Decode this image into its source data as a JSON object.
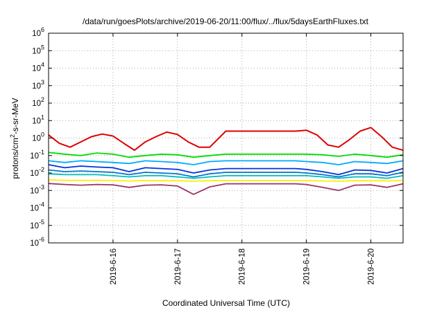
{
  "chart_data": {
    "type": "line",
    "title": "/data/run/goesPlots/archive/2019-06-20/11:00/flux/../flux/5daysEarthFluxes.txt",
    "xlabel": "Coordinated Universal Time (UTC)",
    "ylabel": {
      "prefix": "protons/cm",
      "sup": "2",
      "suffix": "-s-sr-MeV"
    },
    "yscale": "log",
    "ylim": [
      1e-06,
      1000000.0
    ],
    "xlim": [
      "2019-06-15 00:00",
      "2019-06-20 12:00"
    ],
    "y_ticks": [
      {
        "base": "10",
        "exp": "-6"
      },
      {
        "base": "10",
        "exp": "-5"
      },
      {
        "base": "10",
        "exp": "-4"
      },
      {
        "base": "10",
        "exp": "-3"
      },
      {
        "base": "10",
        "exp": "-2"
      },
      {
        "base": "10",
        "exp": "-1"
      },
      {
        "base": "10",
        "exp": "0"
      },
      {
        "base": "10",
        "exp": "1"
      },
      {
        "base": "10",
        "exp": "2"
      },
      {
        "base": "10",
        "exp": "3"
      },
      {
        "base": "10",
        "exp": "4"
      },
      {
        "base": "10",
        "exp": "5"
      },
      {
        "base": "10",
        "exp": "6"
      }
    ],
    "x_ticks": [
      "2019-6-16",
      "2019-6-17",
      "2019-6-18",
      "2019-6-19",
      "2019-6-20"
    ],
    "grid": "dotted",
    "legend": "none",
    "series": [
      {
        "color": "#dd0000",
        "x": [
          "2019-06-15 00:00",
          "2019-06-15 04:00",
          "2019-06-15 08:00",
          "2019-06-15 12:00",
          "2019-06-15 16:00",
          "2019-06-15 20:00",
          "2019-06-16 00:00",
          "2019-06-16 04:00",
          "2019-06-16 08:00",
          "2019-06-16 12:00",
          "2019-06-16 16:00",
          "2019-06-16 20:00",
          "2019-06-17 00:00",
          "2019-06-17 04:00",
          "2019-06-17 08:00",
          "2019-06-17 12:00",
          "2019-06-17 18:00",
          "2019-06-18 00:00",
          "2019-06-18 12:00",
          "2019-06-18 20:00",
          "2019-06-19 00:00",
          "2019-06-19 04:00",
          "2019-06-19 08:00",
          "2019-06-19 12:00",
          "2019-06-19 16:00",
          "2019-06-19 20:00",
          "2019-06-20 00:00",
          "2019-06-20 04:00",
          "2019-06-20 08:00",
          "2019-06-20 12:00"
        ],
        "values": [
          1.5,
          0.5,
          0.3,
          0.6,
          1.2,
          1.7,
          1.3,
          0.5,
          0.2,
          0.6,
          1.2,
          2.2,
          1.6,
          0.6,
          0.3,
          0.3,
          2.5,
          2.5,
          2.5,
          2.5,
          2.8,
          1.5,
          0.4,
          0.3,
          0.8,
          2.5,
          4.0,
          1.2,
          0.3,
          0.2
        ]
      },
      {
        "color": "#00dd00",
        "x": [
          "2019-06-15 00:00",
          "2019-06-15 06:00",
          "2019-06-15 12:00",
          "2019-06-15 18:00",
          "2019-06-16 00:00",
          "2019-06-16 06:00",
          "2019-06-16 12:00",
          "2019-06-16 18:00",
          "2019-06-17 00:00",
          "2019-06-17 06:00",
          "2019-06-17 12:00",
          "2019-06-17 18:00",
          "2019-06-18 00:00",
          "2019-06-18 12:00",
          "2019-06-18 20:00",
          "2019-06-19 00:00",
          "2019-06-19 06:00",
          "2019-06-19 12:00",
          "2019-06-19 18:00",
          "2019-06-20 00:00",
          "2019-06-20 06:00",
          "2019-06-20 12:00"
        ],
        "values": [
          0.15,
          0.12,
          0.1,
          0.14,
          0.12,
          0.08,
          0.1,
          0.12,
          0.11,
          0.08,
          0.1,
          0.12,
          0.12,
          0.12,
          0.12,
          0.12,
          0.11,
          0.09,
          0.12,
          0.1,
          0.08,
          0.11
        ]
      },
      {
        "color": "#00aaff",
        "x": [
          "2019-06-15 00:00",
          "2019-06-15 06:00",
          "2019-06-15 12:00",
          "2019-06-15 18:00",
          "2019-06-16 00:00",
          "2019-06-16 06:00",
          "2019-06-16 12:00",
          "2019-06-16 18:00",
          "2019-06-17 00:00",
          "2019-06-17 06:00",
          "2019-06-17 12:00",
          "2019-06-17 18:00",
          "2019-06-18 00:00",
          "2019-06-18 12:00",
          "2019-06-18 20:00",
          "2019-06-19 00:00",
          "2019-06-19 06:00",
          "2019-06-19 12:00",
          "2019-06-19 18:00",
          "2019-06-20 00:00",
          "2019-06-20 06:00",
          "2019-06-20 12:00"
        ],
        "values": [
          0.05,
          0.04,
          0.05,
          0.045,
          0.04,
          0.035,
          0.05,
          0.045,
          0.04,
          0.03,
          0.045,
          0.05,
          0.05,
          0.05,
          0.05,
          0.045,
          0.04,
          0.03,
          0.045,
          0.04,
          0.035,
          0.05
        ]
      },
      {
        "color": "#0033dd",
        "x": [
          "2019-06-15 00:00",
          "2019-06-15 06:00",
          "2019-06-15 12:00",
          "2019-06-15 18:00",
          "2019-06-16 00:00",
          "2019-06-16 06:00",
          "2019-06-16 12:00",
          "2019-06-16 18:00",
          "2019-06-17 00:00",
          "2019-06-17 06:00",
          "2019-06-17 12:00",
          "2019-06-17 18:00",
          "2019-06-18 00:00",
          "2019-06-18 12:00",
          "2019-06-18 20:00",
          "2019-06-19 00:00",
          "2019-06-19 06:00",
          "2019-06-19 12:00",
          "2019-06-19 18:00",
          "2019-06-20 00:00",
          "2019-06-20 06:00",
          "2019-06-20 12:00"
        ],
        "values": [
          0.03,
          0.02,
          0.025,
          0.022,
          0.02,
          0.012,
          0.02,
          0.018,
          0.016,
          0.01,
          0.015,
          0.018,
          0.018,
          0.018,
          0.018,
          0.016,
          0.012,
          0.008,
          0.015,
          0.014,
          0.01,
          0.018
        ]
      },
      {
        "color": "#0077cc",
        "x": [
          "2019-06-15 00:00",
          "2019-06-15 06:00",
          "2019-06-15 12:00",
          "2019-06-15 18:00",
          "2019-06-16 00:00",
          "2019-06-16 06:00",
          "2019-06-16 12:00",
          "2019-06-16 18:00",
          "2019-06-17 00:00",
          "2019-06-17 06:00",
          "2019-06-17 12:00",
          "2019-06-17 18:00",
          "2019-06-18 00:00",
          "2019-06-18 12:00",
          "2019-06-18 20:00",
          "2019-06-19 00:00",
          "2019-06-19 06:00",
          "2019-06-19 12:00",
          "2019-06-19 18:00",
          "2019-06-20 00:00",
          "2019-06-20 06:00",
          "2019-06-20 12:00"
        ],
        "values": [
          0.015,
          0.012,
          0.013,
          0.012,
          0.011,
          0.008,
          0.011,
          0.01,
          0.009,
          0.006,
          0.009,
          0.011,
          0.011,
          0.011,
          0.011,
          0.01,
          0.008,
          0.006,
          0.009,
          0.009,
          0.007,
          0.011
        ]
      },
      {
        "color": "#00bbbb",
        "x": [
          "2019-06-15 00:00",
          "2019-06-15 06:00",
          "2019-06-15 12:00",
          "2019-06-15 18:00",
          "2019-06-16 00:00",
          "2019-06-16 06:00",
          "2019-06-16 12:00",
          "2019-06-16 18:00",
          "2019-06-17 00:00",
          "2019-06-17 06:00",
          "2019-06-17 12:00",
          "2019-06-17 18:00",
          "2019-06-18 00:00",
          "2019-06-18 12:00",
          "2019-06-18 20:00",
          "2019-06-19 00:00",
          "2019-06-19 06:00",
          "2019-06-19 12:00",
          "2019-06-19 18:00",
          "2019-06-20 00:00",
          "2019-06-20 06:00",
          "2019-06-20 12:00"
        ],
        "values": [
          0.009,
          0.008,
          0.008,
          0.008,
          0.007,
          0.006,
          0.007,
          0.007,
          0.006,
          0.005,
          0.006,
          0.007,
          0.007,
          0.007,
          0.007,
          0.007,
          0.006,
          0.005,
          0.006,
          0.006,
          0.005,
          0.007
        ]
      },
      {
        "color": "#ffee00",
        "x": [
          "2019-06-15 00:00",
          "2019-06-15 06:00",
          "2019-06-15 12:00",
          "2019-06-15 18:00",
          "2019-06-16 00:00",
          "2019-06-16 06:00",
          "2019-06-16 12:00",
          "2019-06-16 18:00",
          "2019-06-17 00:00",
          "2019-06-17 06:00",
          "2019-06-17 12:00",
          "2019-06-17 18:00",
          "2019-06-18 00:00",
          "2019-06-18 12:00",
          "2019-06-18 20:00",
          "2019-06-19 00:00",
          "2019-06-19 06:00",
          "2019-06-19 12:00",
          "2019-06-19 18:00",
          "2019-06-20 00:00",
          "2019-06-20 06:00",
          "2019-06-20 12:00"
        ],
        "values": [
          0.004,
          0.0038,
          0.0037,
          0.0038,
          0.0037,
          0.0035,
          0.0037,
          0.0036,
          0.0036,
          0.0034,
          0.0036,
          0.0037,
          0.0037,
          0.0037,
          0.0037,
          0.0037,
          0.0035,
          0.0034,
          0.0036,
          0.0036,
          0.0035,
          0.0037
        ]
      },
      {
        "color": "#993366",
        "x": [
          "2019-06-15 00:00",
          "2019-06-15 06:00",
          "2019-06-15 12:00",
          "2019-06-15 18:00",
          "2019-06-16 00:00",
          "2019-06-16 06:00",
          "2019-06-16 12:00",
          "2019-06-16 18:00",
          "2019-06-17 00:00",
          "2019-06-17 06:00",
          "2019-06-17 12:00",
          "2019-06-17 18:00",
          "2019-06-18 00:00",
          "2019-06-18 12:00",
          "2019-06-18 20:00",
          "2019-06-19 00:00",
          "2019-06-19 06:00",
          "2019-06-19 12:00",
          "2019-06-19 18:00",
          "2019-06-20 00:00",
          "2019-06-20 06:00",
          "2019-06-20 12:00"
        ],
        "values": [
          0.0025,
          0.0022,
          0.002,
          0.0022,
          0.0021,
          0.0015,
          0.002,
          0.0021,
          0.0018,
          0.0006,
          0.0016,
          0.0024,
          0.0024,
          0.0024,
          0.0024,
          0.0022,
          0.0015,
          0.001,
          0.002,
          0.0021,
          0.0015,
          0.0024
        ]
      }
    ]
  }
}
